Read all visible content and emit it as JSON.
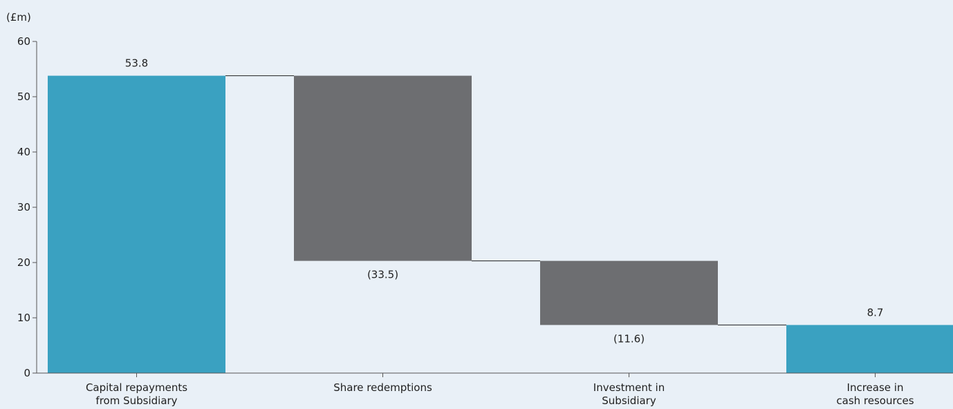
{
  "chart_data": {
    "type": "bar",
    "subtype": "waterfall",
    "y_unit": "(£m)",
    "ylim": [
      0,
      60
    ],
    "y_ticks": [
      "0",
      "10",
      "20",
      "30",
      "40",
      "50",
      "60"
    ],
    "grid": false,
    "categories": [
      [
        "Capital repayments",
        "from Subsidiary"
      ],
      [
        "Share redemptions"
      ],
      [
        "Investment in",
        "Subsidiary"
      ],
      [
        "Increase in",
        "cash resources"
      ]
    ],
    "bars": [
      {
        "start": 0,
        "end": 53.8,
        "kind": "total",
        "label": "53.8"
      },
      {
        "start": 53.8,
        "end": 20.3,
        "kind": "decrease",
        "label": "(33.5)"
      },
      {
        "start": 20.3,
        "end": 8.7,
        "kind": "decrease",
        "label": "(11.6)"
      },
      {
        "start": 0,
        "end": 8.7,
        "kind": "total",
        "label": "8.7"
      }
    ],
    "colors": {
      "total": "#3aa1c1",
      "decrease": "#6d6e71",
      "axis": "#555555",
      "connector": "#1f1f1f",
      "background": "#e9f0f7"
    }
  }
}
